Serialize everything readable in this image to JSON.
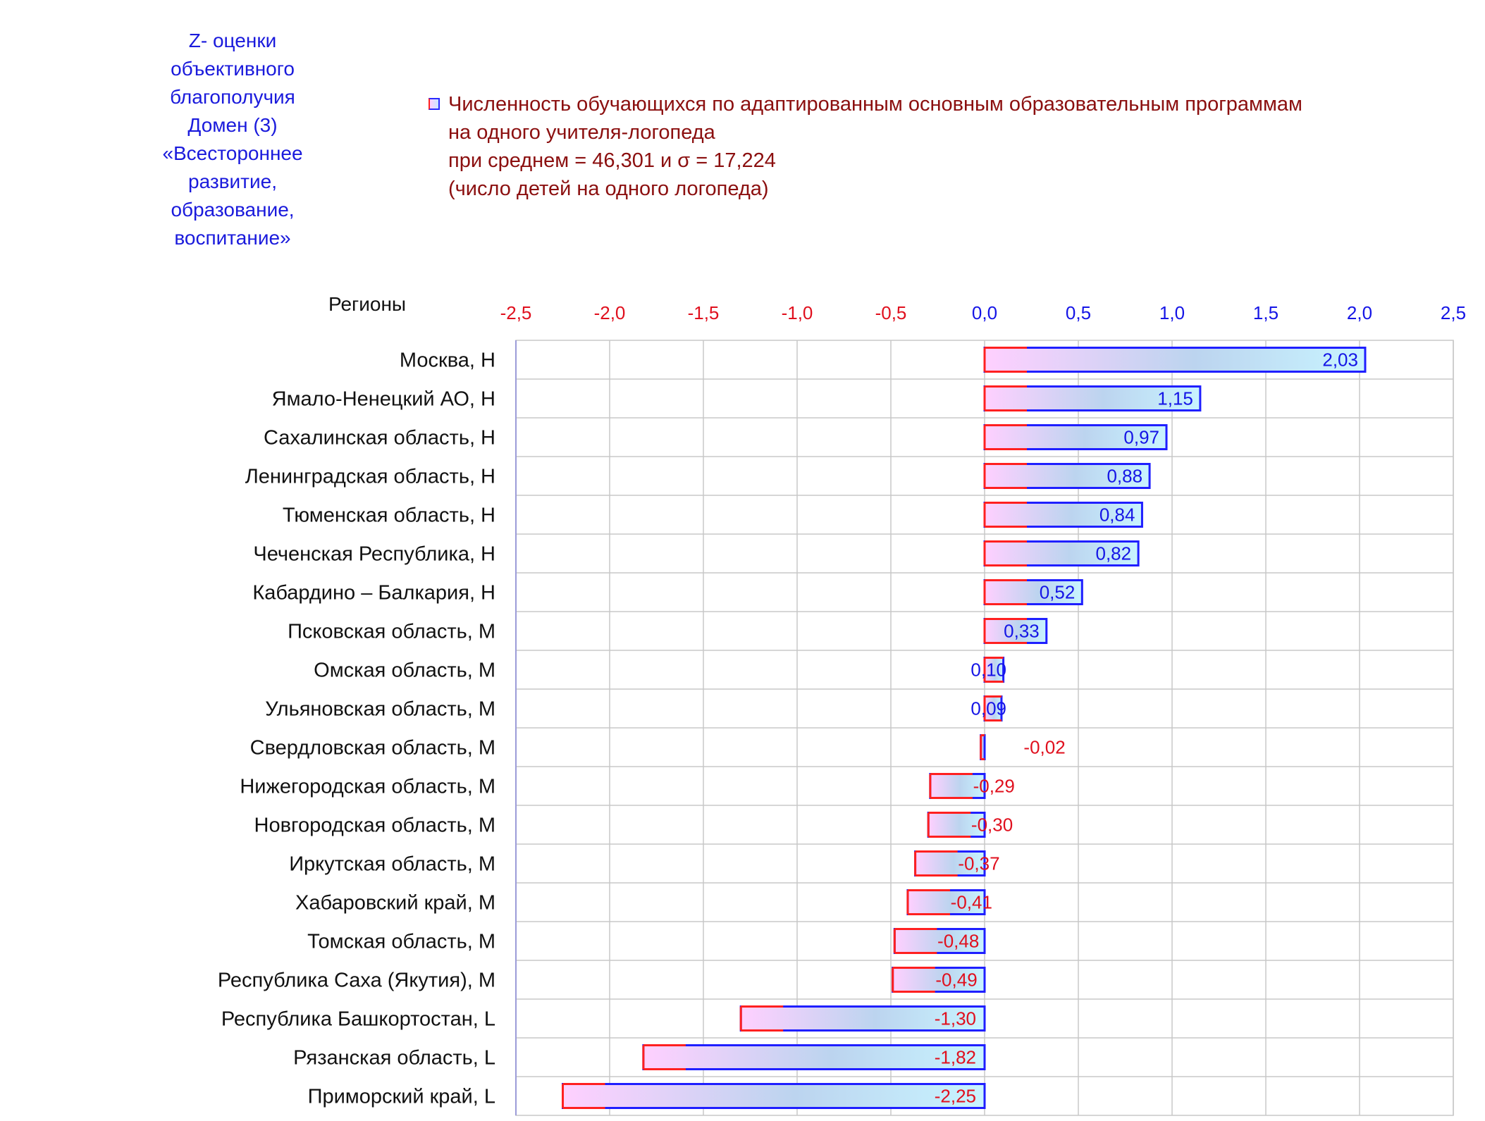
{
  "side_title": "Z- оценки\nобъективного\nблагополучия\nДомен (3)\n«Всестороннее\nразвитие,\nобразование,\nвоспитание»",
  "legend": {
    "text": "Численность обучающихся по адаптированным основным образовательным программам\nна одного учителя-логопеда\nпри среднем = 46,301  и σ = 17,224\n(число детей на одного логопеда)"
  },
  "regions_header": "Регионы",
  "colors": {
    "negative_tick": "#e0101e",
    "positive_tick": "#1515e6",
    "bar_border_red": "#ff2020",
    "bar_border_blue": "#1f1fff",
    "bar_grad_start": "#ffd0ff",
    "bar_grad_mid": "#bcd4ef",
    "bar_grad_end": "#c8f4ff",
    "grid": "#c8c8c8",
    "frame": "#9c9cd8"
  },
  "chart_data": {
    "type": "bar",
    "orientation": "horizontal",
    "xlim": [
      -2.5,
      2.5
    ],
    "xticks": [
      "-2,5",
      "-2,0",
      "-1,5",
      "-1,0",
      "-0,5",
      "0,0",
      "0,5",
      "1,0",
      "1,5",
      "2,0",
      "2,5"
    ],
    "tick_values": [
      -2.5,
      -2.0,
      -1.5,
      -1.0,
      -0.5,
      0.0,
      0.5,
      1.0,
      1.5,
      2.0,
      2.5
    ],
    "grid": true,
    "categories": [
      "Москва,  H",
      "Ямало-Ненецкий АО,  H",
      "Сахалинская область,  H",
      "Ленинградская область,  H",
      "Тюменская область,  H",
      "Чеченская Республика,  H",
      "Кабардино – Балкария,  H",
      "Псковская область,  M",
      "Омская область,  M",
      "Ульяновская область,  M",
      "Свердловская область,  M",
      "Нижегородская область,  M",
      "Новгородская область,  M",
      "Иркутская область,  M",
      "Хабаровский край,  M",
      "Томская область,  M",
      "Республика Саха (Якутия),  M",
      "Республика Башкортостан,  L",
      "Рязанская область,  L",
      "Приморский край,  L"
    ],
    "values": [
      2.03,
      1.15,
      0.97,
      0.88,
      0.84,
      0.82,
      0.52,
      0.33,
      0.1,
      0.09,
      -0.02,
      -0.29,
      -0.3,
      -0.37,
      -0.41,
      -0.48,
      -0.49,
      -1.3,
      -1.82,
      -2.25
    ],
    "value_labels": [
      "2,03",
      "1,15",
      "0,97",
      "0,88",
      "0,84",
      "0,82",
      "0,52",
      "0,33",
      "0,10",
      "0,09",
      "-0,02",
      "-0,29",
      "-0,30",
      "-0,37",
      "-0,41",
      "-0,48",
      "-0,49",
      "-1,30",
      "-1,82",
      "-2,25"
    ]
  }
}
